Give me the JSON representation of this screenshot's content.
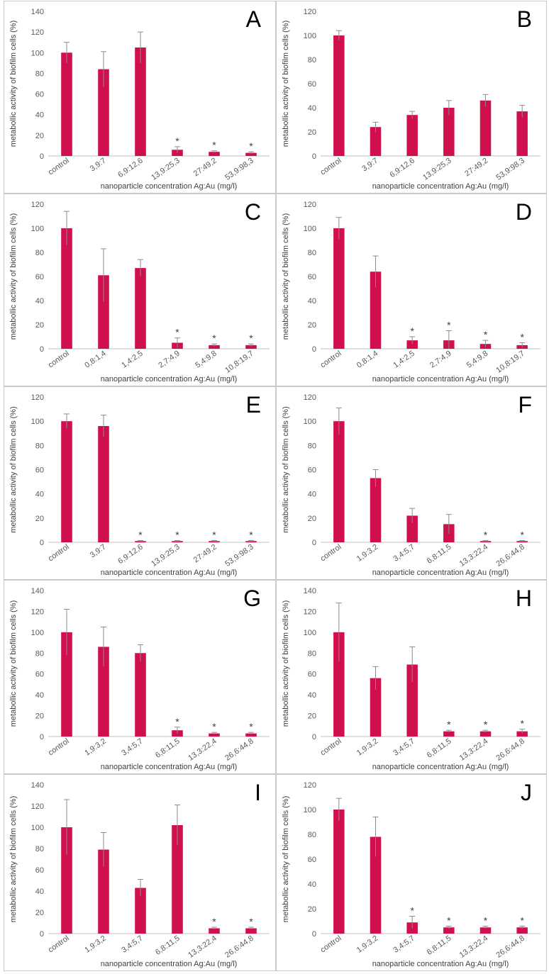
{
  "figure": {
    "bar_color": "#d0104c",
    "error_bar_color": "#8c8c8c",
    "axis_color": "#bfbfbf",
    "significance_marker": "*"
  },
  "chart_data": [
    {
      "panel": "A",
      "type": "bar",
      "xlabel": "nanoparticle concentration Ag:Au (mg/l)",
      "ylabel": "metabollic activity of biofilm cells (%)",
      "ylim": [
        0,
        140
      ],
      "yticks": [
        0,
        20,
        40,
        60,
        80,
        100,
        120,
        140
      ],
      "grid": false,
      "categories": [
        "control",
        "3,9:7",
        "6,9:12,6",
        "13,9:25,3",
        "27:49,2",
        "53,9:98,3"
      ],
      "values": [
        100,
        84,
        105,
        6,
        4,
        3
      ],
      "errors": [
        10,
        17,
        15,
        3,
        1,
        1
      ],
      "significant": [
        false,
        false,
        false,
        true,
        true,
        true
      ]
    },
    {
      "panel": "B",
      "type": "bar",
      "xlabel": "nanoparticle concentration Ag:Au (mg/l)",
      "ylabel": "metabollic activity of biofilm cells  (%)",
      "ylim": [
        0,
        120
      ],
      "yticks": [
        0,
        20,
        40,
        60,
        80,
        100,
        120
      ],
      "grid": false,
      "categories": [
        "control",
        "3,9:7",
        "6,9:12,6",
        "13,9:25,3",
        "27:49,2",
        "53,9:98,3"
      ],
      "values": [
        100,
        24,
        34,
        40,
        46,
        37
      ],
      "errors": [
        4,
        4,
        3,
        6,
        5,
        5
      ],
      "significant": [
        false,
        false,
        false,
        false,
        false,
        false
      ]
    },
    {
      "panel": "C",
      "type": "bar",
      "xlabel": "nanoparticle concentration Ag:Au (mg/l)",
      "ylabel": "metabollic activity of biofilm cells (%)",
      "ylim": [
        0,
        120
      ],
      "yticks": [
        0,
        20,
        40,
        60,
        80,
        100,
        120
      ],
      "grid": false,
      "categories": [
        "control",
        "0,8:1,4",
        "1,4:2,5",
        "2,7:4,9",
        "5,4:9,8",
        "10,8:19,7"
      ],
      "values": [
        100,
        61,
        67,
        5,
        3,
        3
      ],
      "errors": [
        14,
        22,
        7,
        4,
        1,
        1
      ],
      "significant": [
        false,
        false,
        false,
        true,
        true,
        true
      ]
    },
    {
      "panel": "D",
      "type": "bar",
      "xlabel": "nanoparticle concentration Ag:Au (mg/l)",
      "ylabel": "metabollic activity of biofilm cells (%)",
      "ylim": [
        0,
        120
      ],
      "yticks": [
        0,
        20,
        40,
        60,
        80,
        100,
        120
      ],
      "grid": false,
      "categories": [
        "control",
        "0,8:1,4",
        "1,4:2,5",
        "2,7:4,9",
        "5,4:9,8",
        "10,8:19,7"
      ],
      "values": [
        100,
        64,
        7,
        7,
        4,
        3
      ],
      "errors": [
        9,
        13,
        3,
        8,
        3,
        2
      ],
      "significant": [
        false,
        false,
        true,
        true,
        true,
        true
      ]
    },
    {
      "panel": "E",
      "type": "bar",
      "xlabel": "nanoparticle concentration Ag:Au (mg/l)",
      "ylabel": "metabollic activity of biofilm cells (%)",
      "ylim": [
        0,
        120
      ],
      "yticks": [
        0,
        20,
        40,
        60,
        80,
        100,
        120
      ],
      "grid": false,
      "categories": [
        "control",
        "3,9:7",
        "6,9:12,6",
        "13,9:25,3",
        "27:49,2",
        "53,9:98,3"
      ],
      "values": [
        100,
        96,
        1,
        1,
        1,
        1
      ],
      "errors": [
        6,
        9,
        0.5,
        0.5,
        0.5,
        0.5
      ],
      "significant": [
        false,
        false,
        true,
        true,
        true,
        true
      ]
    },
    {
      "panel": "F",
      "type": "bar",
      "xlabel": "nanoparticle concentration Ag:Au (mg/l)",
      "ylabel": "metabollic activity of biofilm cells (%)",
      "ylim": [
        0,
        120
      ],
      "yticks": [
        0,
        20,
        40,
        60,
        80,
        100,
        120
      ],
      "grid": false,
      "categories": [
        "control",
        "1,9:3,2",
        "3,4:5,7",
        "6,8:11,5",
        "13,3:22,4",
        "26,6:44,8"
      ],
      "values": [
        100,
        53,
        22,
        15,
        1,
        1
      ],
      "errors": [
        11,
        7,
        6,
        8,
        0.5,
        0.5
      ],
      "significant": [
        false,
        false,
        false,
        false,
        true,
        true
      ]
    },
    {
      "panel": "G",
      "type": "bar",
      "xlabel": "nanoparticle concentration Ag:Au (mg/l)",
      "ylabel": "metabollic activity of biofilm cells (%)",
      "ylim": [
        0,
        140
      ],
      "yticks": [
        0,
        20,
        40,
        60,
        80,
        100,
        120,
        140
      ],
      "grid": false,
      "categories": [
        "control",
        "1,9:3,2",
        "3,4:5,7",
        "6,8:11,5",
        "13,3:22,4",
        "26,6:44,8"
      ],
      "values": [
        100,
        86,
        80,
        6,
        3,
        3
      ],
      "errors": [
        22,
        19,
        8,
        3,
        1,
        1
      ],
      "significant": [
        false,
        false,
        false,
        true,
        true,
        true
      ]
    },
    {
      "panel": "H",
      "type": "bar",
      "xlabel": "nanoparticle concentration Ag:Au (mg/l)",
      "ylabel": "metabollic activity of biofilm cells (%)",
      "ylim": [
        0,
        140
      ],
      "yticks": [
        0,
        20,
        40,
        60,
        80,
        100,
        120,
        140
      ],
      "grid": false,
      "categories": [
        "control",
        "1,9:3,2",
        "3,4:5,7",
        "6,8:11,5",
        "13,3:22,4",
        "26,6:44,8"
      ],
      "values": [
        100,
        56,
        69,
        5,
        5,
        5
      ],
      "errors": [
        28,
        11,
        17,
        1,
        1,
        2
      ],
      "significant": [
        false,
        false,
        false,
        true,
        true,
        true
      ]
    },
    {
      "panel": "I",
      "type": "bar",
      "xlabel": "nanoparticle concentration Ag:Au (mg/l)",
      "ylabel": "metabollic activity of biofilm cells (%)",
      "ylim": [
        0,
        140
      ],
      "yticks": [
        0,
        20,
        40,
        60,
        80,
        100,
        120,
        140
      ],
      "grid": false,
      "categories": [
        "control",
        "1,9:3,2",
        "3,4:5,7",
        "6,8:11,5",
        "13,3:22,4",
        "26,6:44,8"
      ],
      "values": [
        100,
        79,
        43,
        102,
        5,
        5
      ],
      "errors": [
        26,
        16,
        8,
        19,
        1,
        1
      ],
      "significant": [
        false,
        false,
        false,
        false,
        true,
        true
      ]
    },
    {
      "panel": "J",
      "type": "bar",
      "xlabel": "nanoparticle concentration Ag:Au (mg/l)",
      "ylabel": "metabollic activity of biofilm cells (%)",
      "ylim": [
        0,
        120
      ],
      "yticks": [
        0,
        20,
        40,
        60,
        80,
        100,
        120
      ],
      "grid": false,
      "categories": [
        "control",
        "1,9:3,2",
        "3,4:5,7",
        "6,8:11,5",
        "13,3:22,4",
        "26,6:44,8"
      ],
      "values": [
        100,
        78,
        9,
        5,
        5,
        5
      ],
      "errors": [
        9,
        16,
        5,
        1,
        1,
        1
      ],
      "significant": [
        false,
        false,
        true,
        true,
        true,
        true
      ]
    }
  ]
}
